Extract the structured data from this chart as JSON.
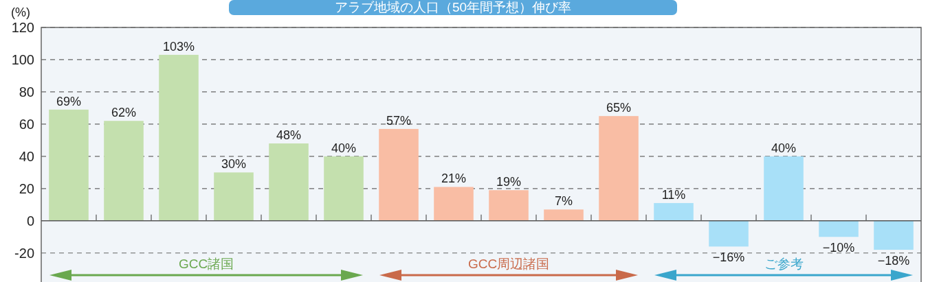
{
  "chart_data": {
    "type": "bar",
    "title": "アラブ地域の人口（50年間予想）伸び率",
    "ylabel": "(%)",
    "categories": [
      null,
      null,
      null,
      null,
      null,
      null,
      null,
      null,
      null,
      null,
      null,
      null,
      null,
      null,
      null,
      null
    ],
    "values": [
      69,
      62,
      103,
      30,
      48,
      40,
      57,
      21,
      19,
      7,
      65,
      11,
      -16,
      40,
      -10,
      -18
    ],
    "value_labels": [
      "69%",
      "62%",
      "103%",
      "30%",
      "48%",
      "40%",
      "57%",
      "21%",
      "19%",
      "7%",
      "65%",
      "11%",
      "−16%",
      "40%",
      "−10%",
      "−18%"
    ],
    "colors": [
      "#c4e0ae",
      "#c4e0ae",
      "#c4e0ae",
      "#c4e0ae",
      "#c4e0ae",
      "#c4e0ae",
      "#f9bda4",
      "#f9bda4",
      "#f9bda4",
      "#f9bda4",
      "#f9bda4",
      "#a8e0f8",
      "#a8e0f8",
      "#a8e0f8",
      "#a8e0f8",
      "#a8e0f8"
    ],
    "ylim": [
      -38,
      120
    ],
    "yticks": [
      -20,
      0,
      20,
      40,
      60,
      80,
      100,
      120
    ],
    "grid": "y",
    "annotations": [
      "GCC諸国",
      "GCC周辺諸国",
      "ご参考"
    ]
  }
}
